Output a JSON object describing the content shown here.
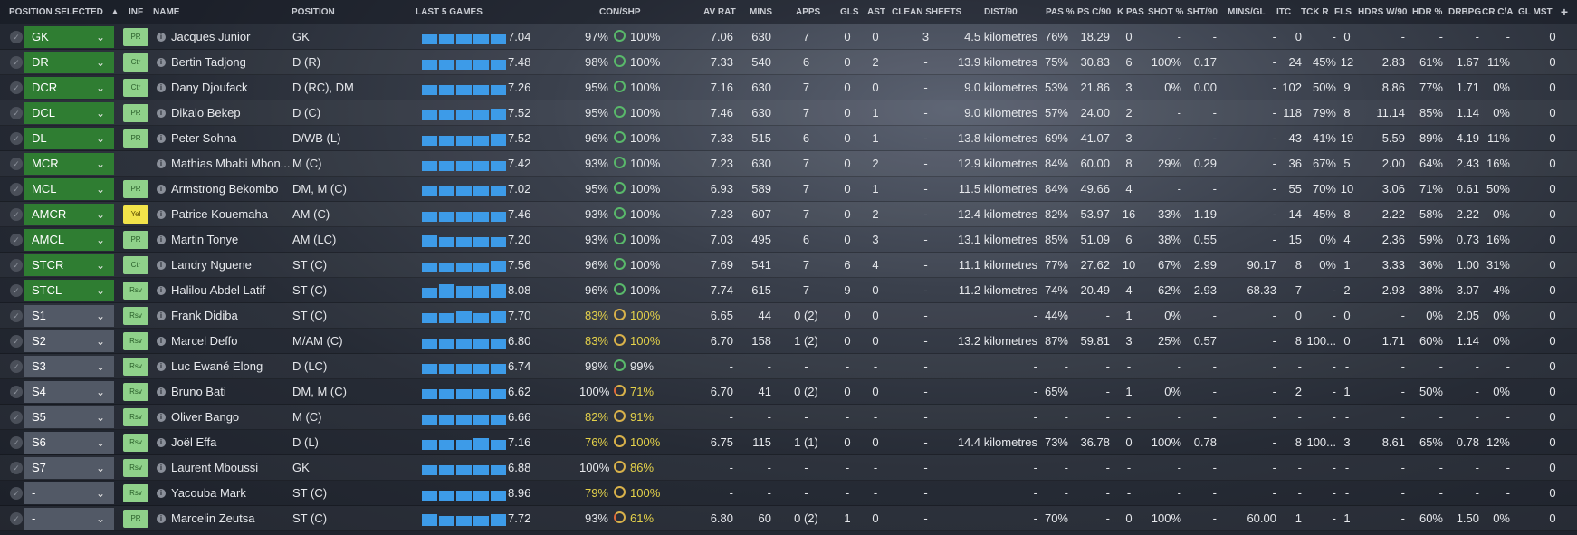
{
  "headers": {
    "position_selected": "POSITION SELECTED",
    "inf": "INF",
    "name": "NAME",
    "position": "POSITION",
    "last5": "LAST 5 GAMES",
    "conshp": "CON/SHP",
    "avrat": "AV RAT",
    "mins": "MINS",
    "apps": "APPS",
    "gls": "GLS",
    "ast": "AST",
    "clean_sheets": "CLEAN SHEETS",
    "dist90": "DIST/90",
    "pas_pct": "PAS %",
    "psc90": "PS C/90",
    "kpas": "K PAS",
    "shot_pct": "SHOT %",
    "sht90": "SHT/90",
    "minsgl": "MINS/GL",
    "itc": "ITC",
    "tckr": "TCK R",
    "fls": "FLS",
    "hdrsw90": "HDRS W/90",
    "hdr_pct": "HDR %",
    "drbpg": "DRBPG",
    "crca": "CR C/A",
    "glmst": "GL MST",
    "sort_icon": "caret-up-icon",
    "add_icon": "plus-icon"
  },
  "colors": {
    "accent_blue": "#3d9be8",
    "green": "#2f7d32",
    "grey": "#525966",
    "con_good": "#59b86a",
    "con_warn": "#e4d14a"
  },
  "players": [
    {
      "sel": "GK",
      "selc": "green",
      "inf": "PR",
      "name": "Jacques Junior",
      "position": "GK",
      "form": [
        0.75,
        0.75,
        0.75,
        0.75,
        0.75
      ],
      "rating": "7.04",
      "con": "97%",
      "cony": false,
      "shp": "100%",
      "ring": "g",
      "avrat": "7.06",
      "mins": "630",
      "apps": "7",
      "gls": "0",
      "ast": "0",
      "cs": "3",
      "dist": "4.5 kilometres",
      "pas": "76%",
      "psc": "18.29",
      "kpas": "0",
      "shot": "-",
      "sht": "-",
      "mgl": "-",
      "itc": "0",
      "tckr": "-",
      "fls": "0",
      "hdrw": "-",
      "hdr": "-",
      "drb": "-",
      "crca": "-",
      "gl": "0"
    },
    {
      "sel": "DR",
      "selc": "green",
      "inf": "Ctr",
      "name": "Bertin Tadjong",
      "position": "D (R)",
      "form": [
        0.75,
        0.75,
        0.75,
        0.75,
        0.75
      ],
      "rating": "7.48",
      "con": "98%",
      "cony": false,
      "shp": "100%",
      "ring": "g",
      "avrat": "7.33",
      "mins": "540",
      "apps": "6",
      "gls": "0",
      "ast": "2",
      "cs": "-",
      "dist": "13.9 kilometres",
      "pas": "75%",
      "psc": "30.83",
      "kpas": "6",
      "shot": "100%",
      "sht": "0.17",
      "mgl": "-",
      "itc": "24",
      "tckr": "45%",
      "fls": "12",
      "hdrw": "2.83",
      "hdr": "61%",
      "drb": "1.67",
      "crca": "11%",
      "gl": "0"
    },
    {
      "sel": "DCR",
      "selc": "green",
      "inf": "Ctr",
      "name": "Dany Djoufack",
      "position": "D (RC), DM",
      "form": [
        0.75,
        0.75,
        0.75,
        0.75,
        0.75
      ],
      "rating": "7.26",
      "con": "95%",
      "cony": false,
      "shp": "100%",
      "ring": "g",
      "avrat": "7.16",
      "mins": "630",
      "apps": "7",
      "gls": "0",
      "ast": "0",
      "cs": "-",
      "dist": "9.0 kilometres",
      "pas": "53%",
      "psc": "21.86",
      "kpas": "3",
      "shot": "0%",
      "sht": "0.00",
      "mgl": "-",
      "itc": "102",
      "tckr": "50%",
      "fls": "9",
      "hdrw": "8.86",
      "hdr": "77%",
      "drb": "1.71",
      "crca": "0%",
      "gl": "0"
    },
    {
      "sel": "DCL",
      "selc": "green",
      "inf": "PR",
      "name": "Dikalo Bekep",
      "position": "D (C)",
      "form": [
        0.75,
        0.75,
        0.75,
        0.75,
        0.85
      ],
      "rating": "7.52",
      "con": "95%",
      "cony": false,
      "shp": "100%",
      "ring": "g",
      "avrat": "7.46",
      "mins": "630",
      "apps": "7",
      "gls": "0",
      "ast": "1",
      "cs": "-",
      "dist": "9.0 kilometres",
      "pas": "57%",
      "psc": "24.00",
      "kpas": "2",
      "shot": "-",
      "sht": "-",
      "mgl": "-",
      "itc": "118",
      "tckr": "79%",
      "fls": "8",
      "hdrw": "11.14",
      "hdr": "85%",
      "drb": "1.14",
      "crca": "0%",
      "gl": "0"
    },
    {
      "sel": "DL",
      "selc": "green",
      "inf": "PR",
      "name": "Peter Sohna",
      "position": "D/WB (L)",
      "form": [
        0.75,
        0.75,
        0.75,
        0.75,
        0.85
      ],
      "rating": "7.52",
      "con": "96%",
      "cony": false,
      "shp": "100%",
      "ring": "g",
      "avrat": "7.33",
      "mins": "515",
      "apps": "6",
      "gls": "0",
      "ast": "1",
      "cs": "-",
      "dist": "13.8 kilometres",
      "pas": "69%",
      "psc": "41.07",
      "kpas": "3",
      "shot": "-",
      "sht": "-",
      "mgl": "-",
      "itc": "43",
      "tckr": "41%",
      "fls": "19",
      "hdrw": "5.59",
      "hdr": "89%",
      "drb": "4.19",
      "crca": "11%",
      "gl": "0"
    },
    {
      "sel": "MCR",
      "selc": "green",
      "inf": "",
      "name": "Mathias Mbabi Mbon...",
      "position": "M (C)",
      "form": [
        0.75,
        0.75,
        0.75,
        0.75,
        0.75
      ],
      "rating": "7.42",
      "con": "93%",
      "cony": false,
      "shp": "100%",
      "ring": "g",
      "avrat": "7.23",
      "mins": "630",
      "apps": "7",
      "gls": "0",
      "ast": "2",
      "cs": "-",
      "dist": "12.9 kilometres",
      "pas": "84%",
      "psc": "60.00",
      "kpas": "8",
      "shot": "29%",
      "sht": "0.29",
      "mgl": "-",
      "itc": "36",
      "tckr": "67%",
      "fls": "5",
      "hdrw": "2.00",
      "hdr": "64%",
      "drb": "2.43",
      "crca": "16%",
      "gl": "0"
    },
    {
      "sel": "MCL",
      "selc": "green",
      "inf": "PR",
      "name": "Armstrong Bekombo",
      "position": "DM, M (C)",
      "form": [
        0.75,
        0.75,
        0.75,
        0.75,
        0.75
      ],
      "rating": "7.02",
      "con": "95%",
      "cony": false,
      "shp": "100%",
      "ring": "g",
      "avrat": "6.93",
      "mins": "589",
      "apps": "7",
      "gls": "0",
      "ast": "1",
      "cs": "-",
      "dist": "11.5 kilometres",
      "pas": "84%",
      "psc": "49.66",
      "kpas": "4",
      "shot": "-",
      "sht": "-",
      "mgl": "-",
      "itc": "55",
      "tckr": "70%",
      "fls": "10",
      "hdrw": "3.06",
      "hdr": "71%",
      "drb": "0.61",
      "crca": "50%",
      "gl": "0"
    },
    {
      "sel": "AMCR",
      "selc": "green",
      "inf": "Yel",
      "name": "Patrice Kouemaha",
      "position": "AM (C)",
      "form": [
        0.75,
        0.75,
        0.75,
        0.75,
        0.75
      ],
      "rating": "7.46",
      "con": "93%",
      "cony": false,
      "shp": "100%",
      "ring": "g",
      "avrat": "7.23",
      "mins": "607",
      "apps": "7",
      "gls": "0",
      "ast": "2",
      "cs": "-",
      "dist": "12.4 kilometres",
      "pas": "82%",
      "psc": "53.97",
      "kpas": "16",
      "shot": "33%",
      "sht": "1.19",
      "mgl": "-",
      "itc": "14",
      "tckr": "45%",
      "fls": "8",
      "hdrw": "2.22",
      "hdr": "58%",
      "drb": "2.22",
      "crca": "0%",
      "gl": "0"
    },
    {
      "sel": "AMCL",
      "selc": "green",
      "inf": "PR",
      "name": "Martin Tonye",
      "position": "AM (LC)",
      "form": [
        0.85,
        0.75,
        0.75,
        0.75,
        0.75
      ],
      "rating": "7.20",
      "con": "93%",
      "cony": false,
      "shp": "100%",
      "ring": "g",
      "avrat": "7.03",
      "mins": "495",
      "apps": "6",
      "gls": "0",
      "ast": "3",
      "cs": "-",
      "dist": "13.1 kilometres",
      "pas": "85%",
      "psc": "51.09",
      "kpas": "6",
      "shot": "38%",
      "sht": "0.55",
      "mgl": "-",
      "itc": "15",
      "tckr": "0%",
      "fls": "4",
      "hdrw": "2.36",
      "hdr": "59%",
      "drb": "0.73",
      "crca": "16%",
      "gl": "0"
    },
    {
      "sel": "STCR",
      "selc": "green",
      "inf": "Ctr",
      "name": "Landry Nguene",
      "position": "ST (C)",
      "form": [
        0.75,
        0.75,
        0.75,
        0.75,
        0.85
      ],
      "rating": "7.56",
      "con": "96%",
      "cony": false,
      "shp": "100%",
      "ring": "g",
      "avrat": "7.69",
      "mins": "541",
      "apps": "7",
      "gls": "6",
      "ast": "4",
      "cs": "-",
      "dist": "11.1 kilometres",
      "pas": "77%",
      "psc": "27.62",
      "kpas": "10",
      "shot": "67%",
      "sht": "2.99",
      "mgl": "90.17",
      "itc": "8",
      "tckr": "0%",
      "fls": "1",
      "hdrw": "3.33",
      "hdr": "36%",
      "drb": "1.00",
      "crca": "31%",
      "gl": "0"
    },
    {
      "sel": "STCL",
      "selc": "green",
      "inf": "Rsv",
      "name": "Halilou Abdel Latif",
      "position": "ST (C)",
      "form": [
        0.75,
        1.0,
        0.85,
        0.85,
        1.0
      ],
      "rating": "8.08",
      "con": "96%",
      "cony": false,
      "shp": "100%",
      "ring": "g",
      "avrat": "7.74",
      "mins": "615",
      "apps": "7",
      "gls": "9",
      "ast": "0",
      "cs": "-",
      "dist": "11.2 kilometres",
      "pas": "74%",
      "psc": "20.49",
      "kpas": "4",
      "shot": "62%",
      "sht": "2.93",
      "mgl": "68.33",
      "itc": "7",
      "tckr": "-",
      "fls": "2",
      "hdrw": "2.93",
      "hdr": "38%",
      "drb": "3.07",
      "crca": "4%",
      "gl": "0"
    },
    {
      "sel": "S1",
      "selc": "grey",
      "inf": "Rsv",
      "name": "Frank Didiba",
      "position": "ST (C)",
      "form": [
        0.75,
        0.75,
        0.85,
        0.75,
        0.85
      ],
      "rating": "7.70",
      "con": "83%",
      "cony": true,
      "shp": "100%",
      "ring": "a",
      "avrat": "6.65",
      "mins": "44",
      "apps": "0 (2)",
      "gls": "0",
      "ast": "0",
      "cs": "-",
      "dist": "-",
      "pas": "44%",
      "psc": "-",
      "kpas": "1",
      "shot": "0%",
      "sht": "-",
      "mgl": "-",
      "itc": "0",
      "tckr": "-",
      "fls": "0",
      "hdrw": "-",
      "hdr": "0%",
      "drb": "2.05",
      "crca": "0%",
      "gl": "0"
    },
    {
      "sel": "S2",
      "selc": "grey",
      "inf": "Rsv",
      "name": "Marcel Deffo",
      "position": "M/AM (C)",
      "form": [
        0.75,
        0.75,
        0.75,
        0.75,
        0.75
      ],
      "rating": "6.80",
      "con": "83%",
      "cony": true,
      "shp": "100%",
      "ring": "a",
      "avrat": "6.70",
      "mins": "158",
      "apps": "1 (2)",
      "gls": "0",
      "ast": "0",
      "cs": "-",
      "dist": "13.2 kilometres",
      "pas": "87%",
      "psc": "59.81",
      "kpas": "3",
      "shot": "25%",
      "sht": "0.57",
      "mgl": "-",
      "itc": "8",
      "tckr": "100...",
      "fls": "0",
      "hdrw": "1.71",
      "hdr": "60%",
      "drb": "1.14",
      "crca": "0%",
      "gl": "0"
    },
    {
      "sel": "S3",
      "selc": "grey",
      "inf": "Rsv",
      "name": "Luc Ewané Elong",
      "position": "D (LC)",
      "form": [
        0.75,
        0.75,
        0.75,
        0.75,
        0.75
      ],
      "rating": "6.74",
      "con": "99%",
      "cony": false,
      "shp": "99%",
      "ring": "g",
      "avrat": "-",
      "mins": "-",
      "apps": "-",
      "gls": "-",
      "ast": "-",
      "cs": "-",
      "dist": "-",
      "pas": "-",
      "psc": "-",
      "kpas": "-",
      "shot": "-",
      "sht": "-",
      "mgl": "-",
      "itc": "-",
      "tckr": "-",
      "fls": "-",
      "hdrw": "-",
      "hdr": "-",
      "drb": "-",
      "crca": "-",
      "gl": "0"
    },
    {
      "sel": "S4",
      "selc": "grey",
      "inf": "Rsv",
      "name": "Bruno Bati",
      "position": "DM, M (C)",
      "form": [
        0.75,
        0.75,
        0.75,
        0.75,
        0.75
      ],
      "rating": "6.62",
      "con": "100%",
      "cony": false,
      "shp": "71%",
      "ring": "r",
      "avrat": "6.70",
      "mins": "41",
      "apps": "0 (2)",
      "gls": "0",
      "ast": "0",
      "cs": "-",
      "dist": "-",
      "pas": "65%",
      "psc": "-",
      "kpas": "1",
      "shot": "0%",
      "sht": "-",
      "mgl": "-",
      "itc": "2",
      "tckr": "-",
      "fls": "1",
      "hdrw": "-",
      "hdr": "50%",
      "drb": "-",
      "crca": "0%",
      "gl": "0"
    },
    {
      "sel": "S5",
      "selc": "grey",
      "inf": "Rsv",
      "name": "Oliver Bango",
      "position": "M (C)",
      "form": [
        0.75,
        0.75,
        0.75,
        0.75,
        0.75
      ],
      "rating": "6.66",
      "con": "82%",
      "cony": true,
      "shp": "91%",
      "ring": "a",
      "avrat": "-",
      "mins": "-",
      "apps": "-",
      "gls": "-",
      "ast": "-",
      "cs": "-",
      "dist": "-",
      "pas": "-",
      "psc": "-",
      "kpas": "-",
      "shot": "-",
      "sht": "-",
      "mgl": "-",
      "itc": "-",
      "tckr": "-",
      "fls": "-",
      "hdrw": "-",
      "hdr": "-",
      "drb": "-",
      "crca": "-",
      "gl": "0"
    },
    {
      "sel": "S6",
      "selc": "grey",
      "inf": "Rsv",
      "name": "Joël Effa",
      "position": "D (L)",
      "form": [
        0.75,
        0.75,
        0.75,
        0.85,
        0.75
      ],
      "rating": "7.16",
      "con": "76%",
      "cony": true,
      "shp": "100%",
      "ring": "a",
      "avrat": "6.75",
      "mins": "115",
      "apps": "1 (1)",
      "gls": "0",
      "ast": "0",
      "cs": "-",
      "dist": "14.4 kilometres",
      "pas": "73%",
      "psc": "36.78",
      "kpas": "0",
      "shot": "100%",
      "sht": "0.78",
      "mgl": "-",
      "itc": "8",
      "tckr": "100...",
      "fls": "3",
      "hdrw": "8.61",
      "hdr": "65%",
      "drb": "0.78",
      "crca": "12%",
      "gl": "0"
    },
    {
      "sel": "S7",
      "selc": "grey",
      "inf": "Rsv",
      "name": "Laurent Mboussi",
      "position": "GK",
      "form": [
        0.75,
        0.75,
        0.75,
        0.75,
        0.75
      ],
      "rating": "6.88",
      "con": "100%",
      "cony": false,
      "shp": "86%",
      "ring": "a",
      "avrat": "-",
      "mins": "-",
      "apps": "-",
      "gls": "-",
      "ast": "-",
      "cs": "-",
      "dist": "-",
      "pas": "-",
      "psc": "-",
      "kpas": "-",
      "shot": "-",
      "sht": "-",
      "mgl": "-",
      "itc": "-",
      "tckr": "-",
      "fls": "-",
      "hdrw": "-",
      "hdr": "-",
      "drb": "-",
      "crca": "-",
      "gl": "0"
    },
    {
      "sel": "-",
      "selc": "grey",
      "inf": "Rsv",
      "name": "Yacouba Mark",
      "position": "ST (C)",
      "form": [
        0.75,
        0.75,
        0.75,
        0.75,
        0.75
      ],
      "rating": "8.96",
      "con": "79%",
      "cony": true,
      "shp": "100%",
      "ring": "a",
      "avrat": "-",
      "mins": "-",
      "apps": "-",
      "gls": "-",
      "ast": "-",
      "cs": "-",
      "dist": "-",
      "pas": "-",
      "psc": "-",
      "kpas": "-",
      "shot": "-",
      "sht": "-",
      "mgl": "-",
      "itc": "-",
      "tckr": "-",
      "fls": "-",
      "hdrw": "-",
      "hdr": "-",
      "drb": "-",
      "crca": "-",
      "gl": "0"
    },
    {
      "sel": "-",
      "selc": "grey",
      "inf": "PR",
      "name": "Marcelin Zeutsa",
      "position": "ST (C)",
      "form": [
        0.85,
        0.75,
        0.75,
        0.75,
        0.85
      ],
      "rating": "7.72",
      "con": "93%",
      "cony": false,
      "shp": "61%",
      "ring": "r",
      "avrat": "6.80",
      "mins": "60",
      "apps": "0 (2)",
      "gls": "1",
      "ast": "0",
      "cs": "-",
      "dist": "-",
      "pas": "70%",
      "psc": "-",
      "kpas": "0",
      "shot": "100%",
      "sht": "-",
      "mgl": "60.00",
      "itc": "1",
      "tckr": "-",
      "fls": "1",
      "hdrw": "-",
      "hdr": "60%",
      "drb": "1.50",
      "crca": "0%",
      "gl": "0"
    }
  ]
}
